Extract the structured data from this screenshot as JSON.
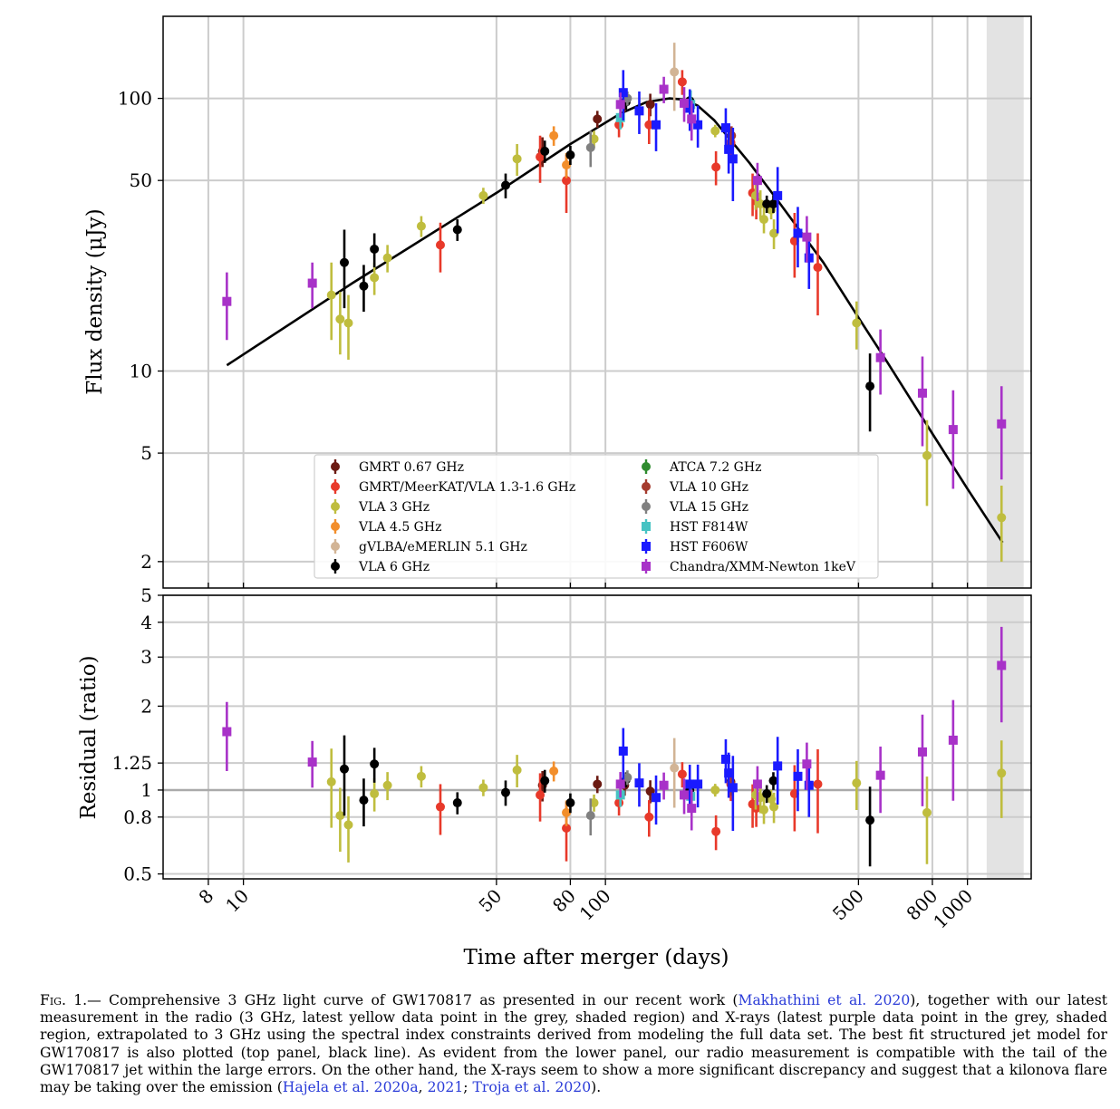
{
  "chart_data": {
    "type": "scatter",
    "x_scale": "log",
    "xlabel": "Time after merger (days)",
    "xlim": [
      6,
      1500
    ],
    "x_ticks": [
      8,
      10,
      50,
      80,
      100,
      500,
      800,
      1000
    ],
    "shaded_region": [
      1130,
      1430
    ],
    "top_panel": {
      "ylabel": "Flux density (μJy)",
      "y_scale": "log",
      "ylim": [
        1.6,
        200
      ],
      "y_ticks": [
        2,
        5,
        10,
        50,
        100
      ],
      "grid": true,
      "model_line": {
        "name": "",
        "x": [
          9,
          20,
          50,
          80,
          110,
          130,
          150,
          165,
          180,
          200,
          250,
          300,
          400,
          500,
          600,
          800,
          1000,
          1250
        ],
        "y": [
          10.5,
          21,
          45,
          68,
          88,
          97,
          100,
          99,
          94,
          83,
          58,
          42,
          25,
          15.7,
          10.8,
          5.9,
          3.7,
          2.35
        ]
      }
    },
    "bottom_panel": {
      "ylabel": "Residual (ratio)",
      "y_scale": "log",
      "ylim": [
        0.48,
        5
      ],
      "y_ticks": [
        0.5,
        0.8,
        1,
        1.25,
        2,
        3,
        4,
        5
      ],
      "y_tick_labels": [
        "0.5",
        "0.8",
        "1",
        "1.25",
        "2",
        "3",
        "4",
        "5"
      ],
      "reference_line": 1
    },
    "legend": {
      "location": "lower-center",
      "columns": 2,
      "entries": [
        {
          "label": "GMRT 0.67 GHz",
          "color": "#6b1a12",
          "marker": "circle"
        },
        {
          "label": "GMRT/MeerKAT/VLA 1.3-1.6 GHz",
          "color": "#e8392a",
          "marker": "circle"
        },
        {
          "label": "VLA 3 GHz",
          "color": "#bfbd3e",
          "marker": "circle"
        },
        {
          "label": "VLA 4.5 GHz",
          "color": "#f28e2b",
          "marker": "circle"
        },
        {
          "label": "gVLBA/eMERLIN 5.1 GHz",
          "color": "#d2b495",
          "marker": "circle"
        },
        {
          "label": "VLA 6 GHz",
          "color": "#000000",
          "marker": "circle"
        },
        {
          "label": "ATCA 7.2 GHz",
          "color": "#2e8b2e",
          "marker": "circle"
        },
        {
          "label": "VLA 10 GHz",
          "color": "#a53a2d",
          "marker": "circle"
        },
        {
          "label": "VLA 15 GHz",
          "color": "#808080",
          "marker": "circle"
        },
        {
          "label": "HST F814W",
          "color": "#46c3c3",
          "marker": "square"
        },
        {
          "label": "HST F606W",
          "color": "#1a1aff",
          "marker": "square"
        },
        {
          "label": "Chandra/XMM-Newton 1keV",
          "color": "#a832c8",
          "marker": "square"
        }
      ]
    },
    "series": [
      {
        "name": "GMRT 0.67 GHz",
        "color": "#6b1a12",
        "marker": "circle",
        "points": [
          [
            67,
            64,
            8,
            1.04
          ],
          [
            95,
            84,
            6,
            1.05
          ],
          [
            113,
            97,
            8,
            1.04
          ],
          [
            133,
            95,
            9,
            0.99
          ],
          [
            222,
            68,
            8,
            1.07
          ]
        ]
      },
      {
        "name": "GMRT/MeerKAT/VLA 1.3-1.6 GHz",
        "color": "#e8392a",
        "marker": "circle",
        "points": [
          [
            35,
            29,
            6,
            0.87
          ],
          [
            66,
            61,
            12,
            0.96
          ],
          [
            78,
            50,
            12,
            0.73
          ],
          [
            109,
            80,
            8,
            0.9
          ],
          [
            132,
            80,
            12,
            0.8
          ],
          [
            163,
            115,
            12,
            1.14
          ],
          [
            202,
            56,
            8,
            0.71
          ],
          [
            222,
            69,
            9,
            1.05
          ],
          [
            255,
            45,
            8,
            0.89
          ],
          [
            261,
            42,
            6,
            0.86
          ],
          [
            333,
            30,
            8,
            0.97
          ],
          [
            386,
            24,
            8,
            1.05
          ]
        ]
      },
      {
        "name": "VLA 3 GHz",
        "color": "#bfbd3e",
        "marker": "circle",
        "points": [
          [
            17.5,
            19,
            6,
            1.07
          ],
          [
            18.5,
            15.5,
            4,
            0.81
          ],
          [
            19.5,
            15,
            4,
            0.75
          ],
          [
            23,
            22,
            3,
            0.97
          ],
          [
            25,
            26,
            3,
            1.04
          ],
          [
            31,
            34,
            3,
            1.12
          ],
          [
            46,
            44,
            3,
            1.02
          ],
          [
            57,
            60,
            8,
            1.18
          ],
          [
            93,
            71,
            5,
            0.9
          ],
          [
            201,
            76,
            4,
            1.0
          ],
          [
            260,
            44,
            5,
            0.96
          ],
          [
            268,
            41,
            5,
            0.94
          ],
          [
            274,
            36,
            4,
            0.85
          ],
          [
            287,
            39,
            3,
            0.93
          ],
          [
            292,
            32,
            4,
            0.87
          ],
          [
            494,
            15,
            3,
            1.06
          ],
          [
            773,
            4.9,
            1.7,
            0.83
          ],
          [
            1242,
            2.9,
            0.9,
            1.15
          ]
        ]
      },
      {
        "name": "VLA 4.5 GHz",
        "color": "#f28e2b",
        "marker": "circle",
        "points": [
          [
            72,
            73,
            6,
            1.17
          ],
          [
            78,
            57,
            6,
            0.83
          ]
        ]
      },
      {
        "name": "gVLBA/eMERLIN 5.1 GHz",
        "color": "#d2b495",
        "marker": "circle",
        "points": [
          [
            155,
            125,
            35,
            1.2
          ]
        ]
      },
      {
        "name": "VLA 6 GHz",
        "color": "#000000",
        "marker": "circle",
        "points": [
          [
            19,
            25,
            8,
            1.19
          ],
          [
            21.5,
            20.5,
            4,
            0.92
          ],
          [
            23,
            28,
            4,
            1.24
          ],
          [
            39,
            33,
            3,
            0.9
          ],
          [
            53,
            48,
            5,
            0.98
          ],
          [
            68,
            64,
            6,
            1.08
          ],
          [
            80,
            62,
            5,
            0.9
          ],
          [
            114,
            97,
            6,
            1.09
          ],
          [
            171,
            98,
            4,
            1.0
          ],
          [
            279,
            41,
            3,
            0.97
          ],
          [
            291,
            41,
            3,
            1.08
          ],
          [
            538,
            8.8,
            2.8,
            0.78
          ]
        ]
      },
      {
        "name": "VLA 10 GHz",
        "color": "#a53a2d",
        "marker": "circle",
        "points": [
          [
            223,
            73,
            6,
            1.04
          ]
        ]
      },
      {
        "name": "VLA 15 GHz",
        "color": "#808080",
        "marker": "circle",
        "points": [
          [
            91,
            66,
            10,
            0.81
          ],
          [
            115,
            100,
            6,
            1.11
          ]
        ]
      },
      {
        "name": "HST F814W",
        "color": "#46c3c3",
        "marker": "square",
        "points": [
          [
            110,
            85,
            8,
            0.96
          ],
          [
            172,
            95,
            12,
            0.95
          ]
        ]
      },
      {
        "name": "HST F606W",
        "color": "#1a1aff",
        "marker": "square",
        "points": [
          [
            112,
            105,
            22,
            1.38
          ],
          [
            124,
            90,
            16,
            1.06
          ],
          [
            138,
            80,
            16,
            0.94
          ],
          [
            171,
            92,
            16,
            1.05
          ],
          [
            180,
            80,
            14,
            1.05
          ],
          [
            215,
            78,
            14,
            1.29
          ],
          [
            219,
            65,
            12,
            1.15
          ],
          [
            225,
            60,
            18,
            1.02
          ],
          [
            299,
            44,
            12,
            1.22
          ],
          [
            340,
            32,
            8,
            1.12
          ],
          [
            365,
            26,
            6,
            1.04
          ]
        ]
      },
      {
        "name": "Chandra/XMM-Newton 1keV",
        "color": "#a832c8",
        "marker": "square",
        "points": [
          [
            9,
            18,
            5,
            1.62
          ],
          [
            15.5,
            21,
            4,
            1.26
          ],
          [
            110,
            95,
            10,
            1.05
          ],
          [
            145,
            108,
            12,
            1.04
          ],
          [
            165,
            96,
            14,
            0.96
          ],
          [
            173,
            84,
            14,
            0.86
          ],
          [
            263,
            50,
            8,
            1.05
          ],
          [
            360,
            31,
            6,
            1.24
          ],
          [
            575,
            11.2,
            3,
            1.13
          ],
          [
            751,
            8.3,
            3,
            1.37
          ],
          [
            913,
            6.1,
            2.4,
            1.51
          ],
          [
            1242,
            6.4,
            2.4,
            2.8
          ]
        ]
      }
    ]
  },
  "caption": {
    "label": "Fig. 1.—",
    "segments": [
      {
        "text": " Comprehensive 3 GHz light curve of GW170817 as presented in our recent work (",
        "ref": false
      },
      {
        "text": "Makhathini et al. 2020",
        "ref": true
      },
      {
        "text": "), together with our latest measurement in the radio (3 GHz, latest yellow data point in the grey, shaded region) and X-rays (latest purple data point in the grey, shaded region, extrapolated to 3 GHz using the spectral index constraints derived from modeling the full data set. The best fit structured jet model for GW170817 is also plotted (top panel, black line). As evident from the lower panel, our radio measurement is compatible with the tail of the GW170817 jet within the large errors. On the other hand, the X-rays seem to show a more significant discrepancy and suggest that a kilonova flare may be taking over the emission (",
        "ref": false
      },
      {
        "text": "Hajela et al. 2020a",
        "ref": true
      },
      {
        "text": ", ",
        "ref": false
      },
      {
        "text": "2021",
        "ref": true
      },
      {
        "text": "; ",
        "ref": false
      },
      {
        "text": "Troja et al. 2020",
        "ref": true
      },
      {
        "text": ").",
        "ref": false
      }
    ]
  }
}
